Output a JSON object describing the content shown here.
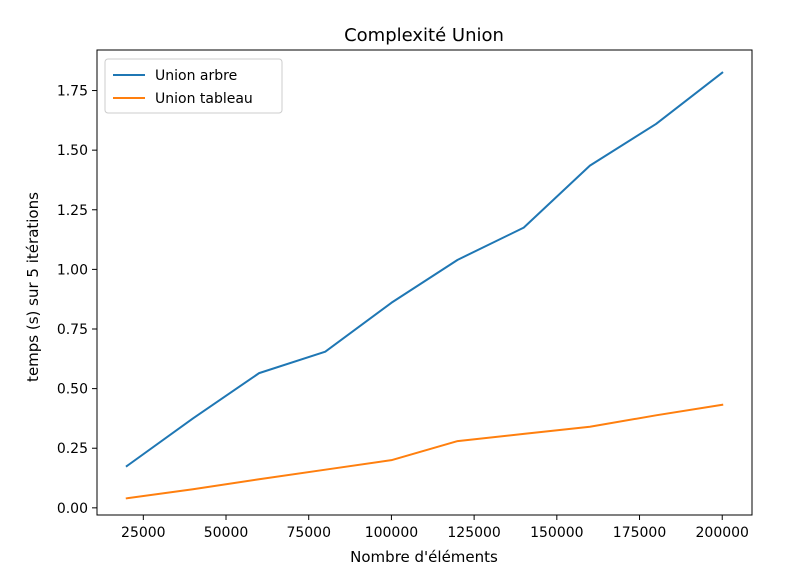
{
  "chart_data": {
    "type": "line",
    "title": "Complexité Union",
    "xlabel": "Nombre d'éléments",
    "ylabel": "temps (s) sur 5 itérations",
    "xlim": [
      11000,
      209000
    ],
    "ylim": [
      -0.03,
      1.92
    ],
    "xticks": [
      25000,
      50000,
      75000,
      100000,
      125000,
      150000,
      175000,
      200000
    ],
    "xtick_labels": [
      "25000",
      "50000",
      "75000",
      "100000",
      "125000",
      "150000",
      "175000",
      "200000"
    ],
    "yticks": [
      0.0,
      0.25,
      0.5,
      0.75,
      1.0,
      1.25,
      1.5,
      1.75
    ],
    "ytick_labels": [
      "0.00",
      "0.25",
      "0.50",
      "0.75",
      "1.00",
      "1.25",
      "1.50",
      "1.75"
    ],
    "grid": false,
    "legend_position": "top-left",
    "x": [
      20000,
      40000,
      60000,
      80000,
      100000,
      120000,
      140000,
      160000,
      180000,
      200000
    ],
    "series": [
      {
        "name": "Union arbre",
        "color": "#1f77b4",
        "values": [
          0.175,
          0.375,
          0.565,
          0.655,
          0.86,
          1.04,
          1.175,
          1.435,
          1.61,
          1.825
        ]
      },
      {
        "name": "Union tableau",
        "color": "#ff7f0e",
        "values": [
          0.04,
          0.078,
          0.12,
          0.16,
          0.2,
          0.28,
          0.31,
          0.34,
          0.388,
          0.432
        ]
      }
    ]
  }
}
